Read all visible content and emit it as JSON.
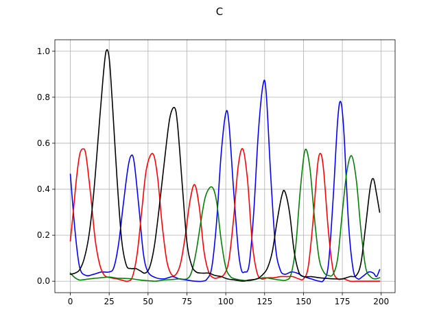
{
  "chart_data": {
    "type": "line",
    "title": "C",
    "xlabel": "",
    "ylabel": "",
    "xlim": [
      -9.95,
      208.95
    ],
    "ylim": [
      -0.05,
      1.05
    ],
    "xticks": [
      0,
      25,
      50,
      75,
      100,
      125,
      150,
      175,
      200
    ],
    "yticks": [
      0.0,
      0.2,
      0.4,
      0.6,
      0.8,
      1.0
    ],
    "xtick_labels": [
      "0",
      "25",
      "50",
      "75",
      "100",
      "125",
      "150",
      "175",
      "200"
    ],
    "ytick_labels": [
      "0.0",
      "0.2",
      "0.4",
      "0.6",
      "0.8",
      "1.0"
    ],
    "grid": true,
    "legend": "none",
    "series": [
      {
        "color": "#0000ff",
        "points": [
          [
            0,
            0.465
          ],
          [
            3,
            0.22
          ],
          [
            6,
            0.06
          ],
          [
            10,
            0.025
          ],
          [
            15,
            0.03
          ],
          [
            20,
            0.04
          ],
          [
            25,
            0.04
          ],
          [
            28,
            0.06
          ],
          [
            31,
            0.16
          ],
          [
            34,
            0.33
          ],
          [
            37,
            0.49
          ],
          [
            39,
            0.545
          ],
          [
            41,
            0.52
          ],
          [
            44,
            0.33
          ],
          [
            47,
            0.12
          ],
          [
            50,
            0.04
          ],
          [
            55,
            0.015
          ],
          [
            60,
            0.01
          ],
          [
            63,
            0.015
          ],
          [
            66,
            0.02
          ],
          [
            70,
            0.01
          ],
          [
            75,
            0.005
          ],
          [
            80,
            0.0
          ],
          [
            85,
            0.0
          ],
          [
            88,
            0.01
          ],
          [
            91,
            0.06
          ],
          [
            94,
            0.25
          ],
          [
            97,
            0.55
          ],
          [
            100,
            0.73
          ],
          [
            102,
            0.69
          ],
          [
            105,
            0.4
          ],
          [
            108,
            0.14
          ],
          [
            110,
            0.05
          ],
          [
            112,
            0.04
          ],
          [
            115,
            0.07
          ],
          [
            118,
            0.3
          ],
          [
            121,
            0.65
          ],
          [
            124,
            0.855
          ],
          [
            126,
            0.82
          ],
          [
            129,
            0.45
          ],
          [
            132,
            0.15
          ],
          [
            135,
            0.05
          ],
          [
            138,
            0.03
          ],
          [
            142,
            0.04
          ],
          [
            146,
            0.035
          ],
          [
            150,
            0.02
          ],
          [
            155,
            0.01
          ],
          [
            160,
            0.0
          ],
          [
            163,
            0.005
          ],
          [
            166,
            0.07
          ],
          [
            169,
            0.35
          ],
          [
            172,
            0.7
          ],
          [
            174,
            0.78
          ],
          [
            176,
            0.65
          ],
          [
            179,
            0.25
          ],
          [
            182,
            0.05
          ],
          [
            185,
            0.01
          ],
          [
            188,
            0.02
          ],
          [
            192,
            0.04
          ],
          [
            195,
            0.035
          ],
          [
            197,
            0.02
          ],
          [
            199,
            0.05
          ]
        ]
      },
      {
        "color": "#ff0000",
        "points": [
          [
            0,
            0.175
          ],
          [
            2,
            0.31
          ],
          [
            4,
            0.45
          ],
          [
            6,
            0.55
          ],
          [
            8,
            0.575
          ],
          [
            10,
            0.55
          ],
          [
            13,
            0.38
          ],
          [
            16,
            0.18
          ],
          [
            19,
            0.07
          ],
          [
            22,
            0.025
          ],
          [
            26,
            0.015
          ],
          [
            30,
            0.01
          ],
          [
            33,
            0.005
          ],
          [
            37,
            0.0
          ],
          [
            40,
            0.02
          ],
          [
            43,
            0.12
          ],
          [
            46,
            0.31
          ],
          [
            49,
            0.49
          ],
          [
            53,
            0.555
          ],
          [
            56,
            0.46
          ],
          [
            59,
            0.25
          ],
          [
            62,
            0.09
          ],
          [
            65,
            0.03
          ],
          [
            68,
            0.03
          ],
          [
            71,
            0.08
          ],
          [
            74,
            0.2
          ],
          [
            77,
            0.35
          ],
          [
            80,
            0.42
          ],
          [
            83,
            0.32
          ],
          [
            86,
            0.13
          ],
          [
            89,
            0.04
          ],
          [
            92,
            0.015
          ],
          [
            95,
            0.015
          ],
          [
            99,
            0.03
          ],
          [
            102,
            0.09
          ],
          [
            105,
            0.27
          ],
          [
            108,
            0.5
          ],
          [
            111,
            0.575
          ],
          [
            114,
            0.44
          ],
          [
            117,
            0.17
          ],
          [
            120,
            0.04
          ],
          [
            123,
            0.01
          ],
          [
            127,
            0.015
          ],
          [
            131,
            0.015
          ],
          [
            135,
            0.02
          ],
          [
            139,
            0.02
          ],
          [
            143,
            0.02
          ],
          [
            147,
            0.01
          ],
          [
            150,
            0.01
          ],
          [
            153,
            0.06
          ],
          [
            156,
            0.25
          ],
          [
            159,
            0.5
          ],
          [
            161,
            0.555
          ],
          [
            163,
            0.48
          ],
          [
            166,
            0.22
          ],
          [
            169,
            0.05
          ],
          [
            172,
            0.01
          ],
          [
            176,
            0.01
          ],
          [
            180,
            0.0
          ],
          [
            185,
            0.0
          ],
          [
            190,
            0.0
          ],
          [
            195,
            0.0
          ],
          [
            199,
            0.0
          ]
        ]
      },
      {
        "color": "#008000",
        "points": [
          [
            0,
            0.035
          ],
          [
            3,
            0.015
          ],
          [
            6,
            0.005
          ],
          [
            10,
            0.008
          ],
          [
            15,
            0.012
          ],
          [
            20,
            0.015
          ],
          [
            25,
            0.018
          ],
          [
            30,
            0.013
          ],
          [
            35,
            0.012
          ],
          [
            40,
            0.01
          ],
          [
            45,
            0.005
          ],
          [
            50,
            0.002
          ],
          [
            55,
            0.0
          ],
          [
            60,
            0.005
          ],
          [
            65,
            0.007
          ],
          [
            70,
            0.01
          ],
          [
            75,
            0.01
          ],
          [
            78,
            0.04
          ],
          [
            81,
            0.13
          ],
          [
            84,
            0.26
          ],
          [
            87,
            0.37
          ],
          [
            91,
            0.41
          ],
          [
            94,
            0.35
          ],
          [
            97,
            0.18
          ],
          [
            100,
            0.06
          ],
          [
            103,
            0.02
          ],
          [
            106,
            0.01
          ],
          [
            110,
            0.005
          ],
          [
            115,
            0.002
          ],
          [
            120,
            0.01
          ],
          [
            125,
            0.015
          ],
          [
            130,
            0.01
          ],
          [
            135,
            0.005
          ],
          [
            139,
            0.005
          ],
          [
            142,
            0.03
          ],
          [
            145,
            0.15
          ],
          [
            148,
            0.4
          ],
          [
            151,
            0.57
          ],
          [
            154,
            0.5
          ],
          [
            157,
            0.28
          ],
          [
            160,
            0.1
          ],
          [
            163,
            0.04
          ],
          [
            166,
            0.025
          ],
          [
            169,
            0.03
          ],
          [
            172,
            0.1
          ],
          [
            175,
            0.3
          ],
          [
            178,
            0.48
          ],
          [
            181,
            0.545
          ],
          [
            184,
            0.44
          ],
          [
            187,
            0.22
          ],
          [
            190,
            0.06
          ],
          [
            193,
            0.02
          ],
          [
            196,
            0.01
          ],
          [
            199,
            0.015
          ]
        ]
      },
      {
        "color": "#000000",
        "points": [
          [
            0,
            0.03
          ],
          [
            3,
            0.035
          ],
          [
            6,
            0.05
          ],
          [
            9,
            0.1
          ],
          [
            12,
            0.2
          ],
          [
            15,
            0.38
          ],
          [
            18,
            0.63
          ],
          [
            21,
            0.88
          ],
          [
            23,
            1.0
          ],
          [
            25,
            0.97
          ],
          [
            27,
            0.78
          ],
          [
            30,
            0.45
          ],
          [
            33,
            0.18
          ],
          [
            36,
            0.07
          ],
          [
            39,
            0.055
          ],
          [
            42,
            0.055
          ],
          [
            45,
            0.045
          ],
          [
            48,
            0.035
          ],
          [
            51,
            0.06
          ],
          [
            54,
            0.15
          ],
          [
            57,
            0.31
          ],
          [
            61,
            0.55
          ],
          [
            64,
            0.71
          ],
          [
            67,
            0.755
          ],
          [
            69,
            0.68
          ],
          [
            72,
            0.42
          ],
          [
            75,
            0.17
          ],
          [
            78,
            0.07
          ],
          [
            81,
            0.04
          ],
          [
            85,
            0.035
          ],
          [
            89,
            0.035
          ],
          [
            93,
            0.025
          ],
          [
            97,
            0.02
          ],
          [
            101,
            0.01
          ],
          [
            106,
            0.005
          ],
          [
            111,
            0.0
          ],
          [
            115,
            0.005
          ],
          [
            120,
            0.01
          ],
          [
            124,
            0.03
          ],
          [
            127,
            0.06
          ],
          [
            130,
            0.13
          ],
          [
            133,
            0.26
          ],
          [
            136,
            0.37
          ],
          [
            138,
            0.39
          ],
          [
            141,
            0.3
          ],
          [
            144,
            0.13
          ],
          [
            147,
            0.04
          ],
          [
            150,
            0.02
          ],
          [
            155,
            0.02
          ],
          [
            160,
            0.015
          ],
          [
            165,
            0.012
          ],
          [
            170,
            0.01
          ],
          [
            175,
            0.01
          ],
          [
            180,
            0.02
          ],
          [
            184,
            0.025
          ],
          [
            187,
            0.08
          ],
          [
            190,
            0.24
          ],
          [
            193,
            0.41
          ],
          [
            195,
            0.445
          ],
          [
            197,
            0.38
          ],
          [
            199,
            0.3
          ]
        ]
      }
    ]
  }
}
